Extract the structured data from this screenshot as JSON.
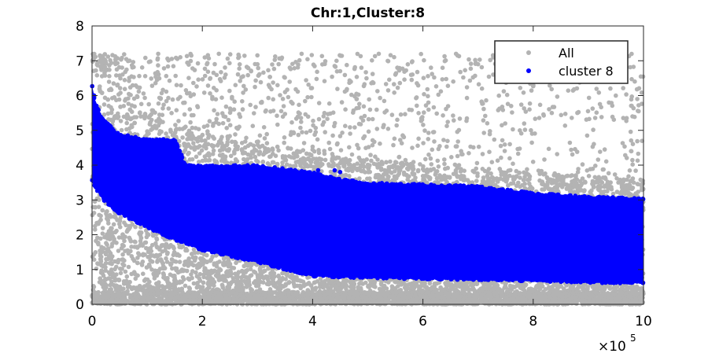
{
  "chart_data": {
    "type": "scatter",
    "title": "Chr:1,Cluster:8",
    "xlabel": "",
    "ylabel": "",
    "xlim": [
      0,
      1000000
    ],
    "ylim": [
      0,
      8
    ],
    "x_ticks": [
      0,
      200000,
      400000,
      600000,
      800000,
      1000000
    ],
    "x_tick_labels": [
      "0",
      "2",
      "4",
      "6",
      "8",
      "10"
    ],
    "x_exponent_label": "×10",
    "x_exponent_power": "5",
    "y_ticks": [
      0,
      1,
      2,
      3,
      4,
      5,
      6,
      7,
      8
    ],
    "y_tick_labels": [
      "0",
      "1",
      "2",
      "3",
      "4",
      "5",
      "6",
      "7",
      "8"
    ],
    "grid": false,
    "legend_position": "top-right",
    "series": [
      {
        "name": "All",
        "color": "#b3b3b3",
        "description_envelope": {
          "x": [
            0,
            20000,
            50000,
            100000,
            150000,
            200000,
            300000,
            400000,
            500000,
            600000,
            700000,
            800000,
            900000,
            1000000
          ],
          "y_low": [
            0,
            0,
            0,
            0,
            0,
            0,
            0,
            0,
            0,
            0,
            0,
            0,
            0,
            0
          ],
          "y_high_dense": [
            7.0,
            6.6,
            6.0,
            5.6,
            5.2,
            4.9,
            4.6,
            4.4,
            4.2,
            4.0,
            3.9,
            3.8,
            3.7,
            3.6
          ]
        },
        "outliers": [
          [
            120000,
            7.2
          ],
          [
            230000,
            7.2
          ],
          [
            380000,
            7.2
          ],
          [
            520000,
            7.2
          ],
          [
            660000,
            7.2
          ],
          [
            180000,
            7.15
          ],
          [
            160000,
            7.1
          ],
          [
            300000,
            6.9
          ],
          [
            450000,
            6.7
          ],
          [
            550000,
            6.6
          ],
          [
            700000,
            6.9
          ],
          [
            830000,
            6.4
          ],
          [
            940000,
            6.2
          ],
          [
            260000,
            6.3
          ],
          [
            350000,
            6.1
          ],
          [
            480000,
            5.9
          ],
          [
            610000,
            5.8
          ],
          [
            760000,
            5.7
          ],
          [
            880000,
            5.5
          ],
          [
            980000,
            5.4
          ]
        ]
      },
      {
        "name": "cluster 8",
        "color": "#0000ff",
        "upper_envelope": {
          "x": [
            0,
            5000,
            20000,
            50000,
            100000,
            140000,
            150000,
            170000,
            250000,
            300000,
            400000,
            450000,
            500000,
            600000,
            700000,
            800000,
            900000,
            1000000
          ],
          "y": [
            6.3,
            5.9,
            5.3,
            4.9,
            4.75,
            4.75,
            4.75,
            4.0,
            4.0,
            4.0,
            3.8,
            3.6,
            3.5,
            3.45,
            3.4,
            3.2,
            3.1,
            3.05
          ]
        },
        "lower_envelope": {
          "x": [
            0,
            20000,
            50000,
            100000,
            150000,
            200000,
            300000,
            400000,
            500000,
            600000,
            700000,
            800000,
            900000,
            1000000
          ],
          "y": [
            3.5,
            3.0,
            2.6,
            2.2,
            1.85,
            1.55,
            1.2,
            0.8,
            0.75,
            0.72,
            0.7,
            0.66,
            0.62,
            0.6
          ]
        }
      }
    ]
  }
}
